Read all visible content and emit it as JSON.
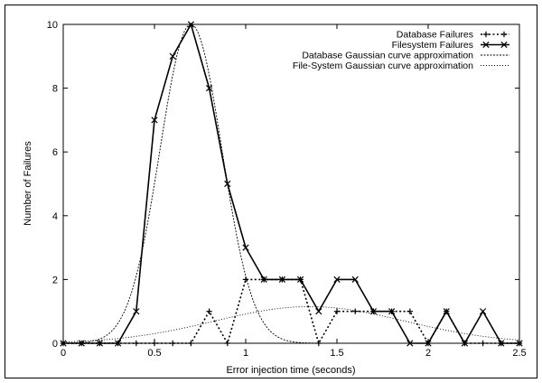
{
  "chart_data": {
    "type": "line",
    "title": "",
    "xlabel": "Error injection time (seconds)",
    "ylabel": "Number of Failures",
    "xlim": [
      0,
      2.5
    ],
    "ylim": [
      0,
      10
    ],
    "x_ticks": [
      "0",
      "0.5",
      "1",
      "1.5",
      "2",
      "2.5"
    ],
    "y_ticks": [
      "0",
      "2",
      "4",
      "6",
      "8",
      "10"
    ],
    "grid": false,
    "legend_position": "top-right",
    "series": [
      {
        "name": "Database Failures",
        "style": "dotted",
        "marker": "plus",
        "x": [
          0,
          0.1,
          0.2,
          0.3,
          0.4,
          0.5,
          0.6,
          0.7,
          0.8,
          0.9,
          1.0,
          1.1,
          1.2,
          1.3,
          1.4,
          1.5,
          1.6,
          1.7,
          1.8,
          1.9,
          2.0,
          2.1,
          2.2,
          2.3,
          2.4,
          2.5
        ],
        "y": [
          0,
          0,
          0,
          0,
          0,
          0,
          0,
          0,
          1,
          0,
          2,
          2,
          2,
          2,
          0,
          1,
          1,
          1,
          1,
          1,
          0,
          1,
          0,
          0,
          0,
          0
        ]
      },
      {
        "name": "Filesystem Failures",
        "style": "solid",
        "marker": "cross",
        "x": [
          0,
          0.1,
          0.2,
          0.3,
          0.4,
          0.5,
          0.6,
          0.7,
          0.8,
          0.9,
          1.0,
          1.1,
          1.2,
          1.3,
          1.4,
          1.5,
          1.6,
          1.7,
          1.8,
          1.9,
          2.0,
          2.1,
          2.2,
          2.3,
          2.4,
          2.5
        ],
        "y": [
          0,
          0,
          0,
          0,
          1,
          7,
          9,
          10,
          8,
          5,
          3,
          2,
          2,
          2,
          1,
          2,
          2,
          1,
          1,
          0,
          0,
          1,
          0,
          1,
          0,
          0
        ]
      },
      {
        "name": "Database Gaussian curve approximation",
        "style": "dashed-fine",
        "marker": "none",
        "gaussian": {
          "amplitude": 10,
          "mean": 0.7,
          "sigma": 0.17
        }
      },
      {
        "name": "File-System Gaussian curve approximation",
        "style": "dotted-fine",
        "marker": "none",
        "gaussian": {
          "amplitude": 1.15,
          "mean": 1.35,
          "sigma": 0.52
        }
      }
    ]
  }
}
